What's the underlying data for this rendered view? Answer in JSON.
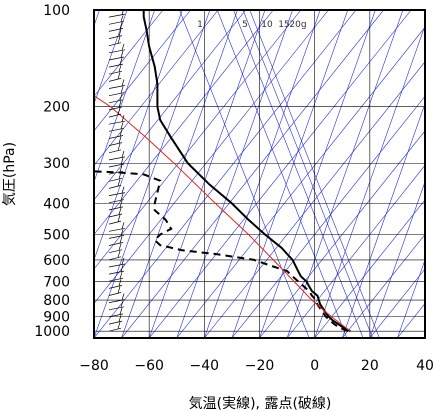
{
  "chart_data": {
    "type": "line",
    "title": "",
    "xlabel": "気温(実線), 露点(破線)",
    "ylabel": "気圧(hPa)",
    "xlim": [
      -80,
      40
    ],
    "ylim": [
      1050,
      100
    ],
    "yscale": "log",
    "grid": true,
    "x_ticks": [
      -80,
      -60,
      -40,
      -20,
      0,
      20,
      40
    ],
    "x_tick_labels": [
      "−80",
      "−60",
      "−40",
      "−20",
      "0",
      "20",
      "40"
    ],
    "y_ticks": [
      100,
      200,
      300,
      400,
      500,
      600,
      700,
      800,
      900,
      1000
    ],
    "y_tick_labels": [
      "100",
      "200",
      "300",
      "400",
      "500",
      "600",
      "700",
      "800",
      "900",
      "1000"
    ],
    "mixing_ratio_labels": [
      "1",
      "5",
      "10",
      "15",
      "20g"
    ],
    "mixing_ratio_values": [
      1,
      5,
      10,
      15,
      20
    ],
    "colors": {
      "temperature": "#000000",
      "dewpoint": "#000000",
      "parcel": "#e8231f",
      "reference_lines": "#2430d8",
      "grid": "#000000"
    },
    "series": [
      {
        "key": "temperature",
        "style": "solid",
        "points": [
          {
            "p": 1000,
            "t": 13
          },
          {
            "p": 975,
            "t": 10.5
          },
          {
            "p": 950,
            "t": 8.5
          },
          {
            "p": 925,
            "t": 6.5
          },
          {
            "p": 900,
            "t": 5
          },
          {
            "p": 875,
            "t": 4
          },
          {
            "p": 850,
            "t": 3
          },
          {
            "p": 825,
            "t": 2
          },
          {
            "p": 800,
            "t": 1.5
          },
          {
            "p": 775,
            "t": 1
          },
          {
            "p": 750,
            "t": -1
          },
          {
            "p": 725,
            "t": -2
          },
          {
            "p": 700,
            "t": -3
          },
          {
            "p": 675,
            "t": -5
          },
          {
            "p": 650,
            "t": -6
          },
          {
            "p": 625,
            "t": -7
          },
          {
            "p": 600,
            "t": -8
          },
          {
            "p": 575,
            "t": -10
          },
          {
            "p": 550,
            "t": -12
          },
          {
            "p": 500,
            "t": -18
          },
          {
            "p": 450,
            "t": -24
          },
          {
            "p": 400,
            "t": -30
          },
          {
            "p": 350,
            "t": -38
          },
          {
            "p": 300,
            "t": -46
          },
          {
            "p": 250,
            "t": -52
          },
          {
            "p": 220,
            "t": -56
          },
          {
            "p": 200,
            "t": -57
          },
          {
            "p": 170,
            "t": -57
          },
          {
            "p": 150,
            "t": -58
          },
          {
            "p": 130,
            "t": -60
          },
          {
            "p": 115,
            "t": -61
          },
          {
            "p": 105,
            "t": -62
          },
          {
            "p": 100,
            "t": -62
          }
        ]
      },
      {
        "key": "dewpoint",
        "style": "dashed",
        "points": [
          {
            "p": 1000,
            "t": 12
          },
          {
            "p": 975,
            "t": 9
          },
          {
            "p": 950,
            "t": 7
          },
          {
            "p": 925,
            "t": 5.5
          },
          {
            "p": 900,
            "t": 4
          },
          {
            "p": 875,
            "t": 3
          },
          {
            "p": 850,
            "t": 2
          },
          {
            "p": 825,
            "t": 1
          },
          {
            "p": 800,
            "t": 0.5
          },
          {
            "p": 775,
            "t": -1
          },
          {
            "p": 750,
            "t": -2
          },
          {
            "p": 725,
            "t": -4
          },
          {
            "p": 700,
            "t": -6
          },
          {
            "p": 675,
            "t": -8
          },
          {
            "p": 650,
            "t": -10
          },
          {
            "p": 625,
            "t": -16
          },
          {
            "p": 600,
            "t": -22
          },
          {
            "p": 575,
            "t": -36
          },
          {
            "p": 560,
            "t": -48
          },
          {
            "p": 540,
            "t": -56
          },
          {
            "p": 520,
            "t": -58
          },
          {
            "p": 500,
            "t": -56
          },
          {
            "p": 480,
            "t": -52
          },
          {
            "p": 450,
            "t": -54
          },
          {
            "p": 420,
            "t": -58
          },
          {
            "p": 400,
            "t": -58
          },
          {
            "p": 370,
            "t": -57
          },
          {
            "p": 340,
            "t": -56
          },
          {
            "p": 325,
            "t": -62
          },
          {
            "p": 320,
            "t": -72
          },
          {
            "p": 318,
            "t": -80
          }
        ]
      },
      {
        "key": "parcel",
        "style": "solid",
        "points": [
          {
            "p": 1000,
            "t": 13
          },
          {
            "p": 950,
            "t": 9.5
          },
          {
            "p": 900,
            "t": 6
          },
          {
            "p": 850,
            "t": 2.5
          },
          {
            "p": 800,
            "t": -1
          },
          {
            "p": 700,
            "t": -7.5
          },
          {
            "p": 600,
            "t": -15
          },
          {
            "p": 500,
            "t": -24
          },
          {
            "p": 400,
            "t": -36
          },
          {
            "p": 300,
            "t": -51
          },
          {
            "p": 250,
            "t": -61
          },
          {
            "p": 200,
            "t": -74
          },
          {
            "p": 185,
            "t": -80
          }
        ]
      }
    ]
  }
}
